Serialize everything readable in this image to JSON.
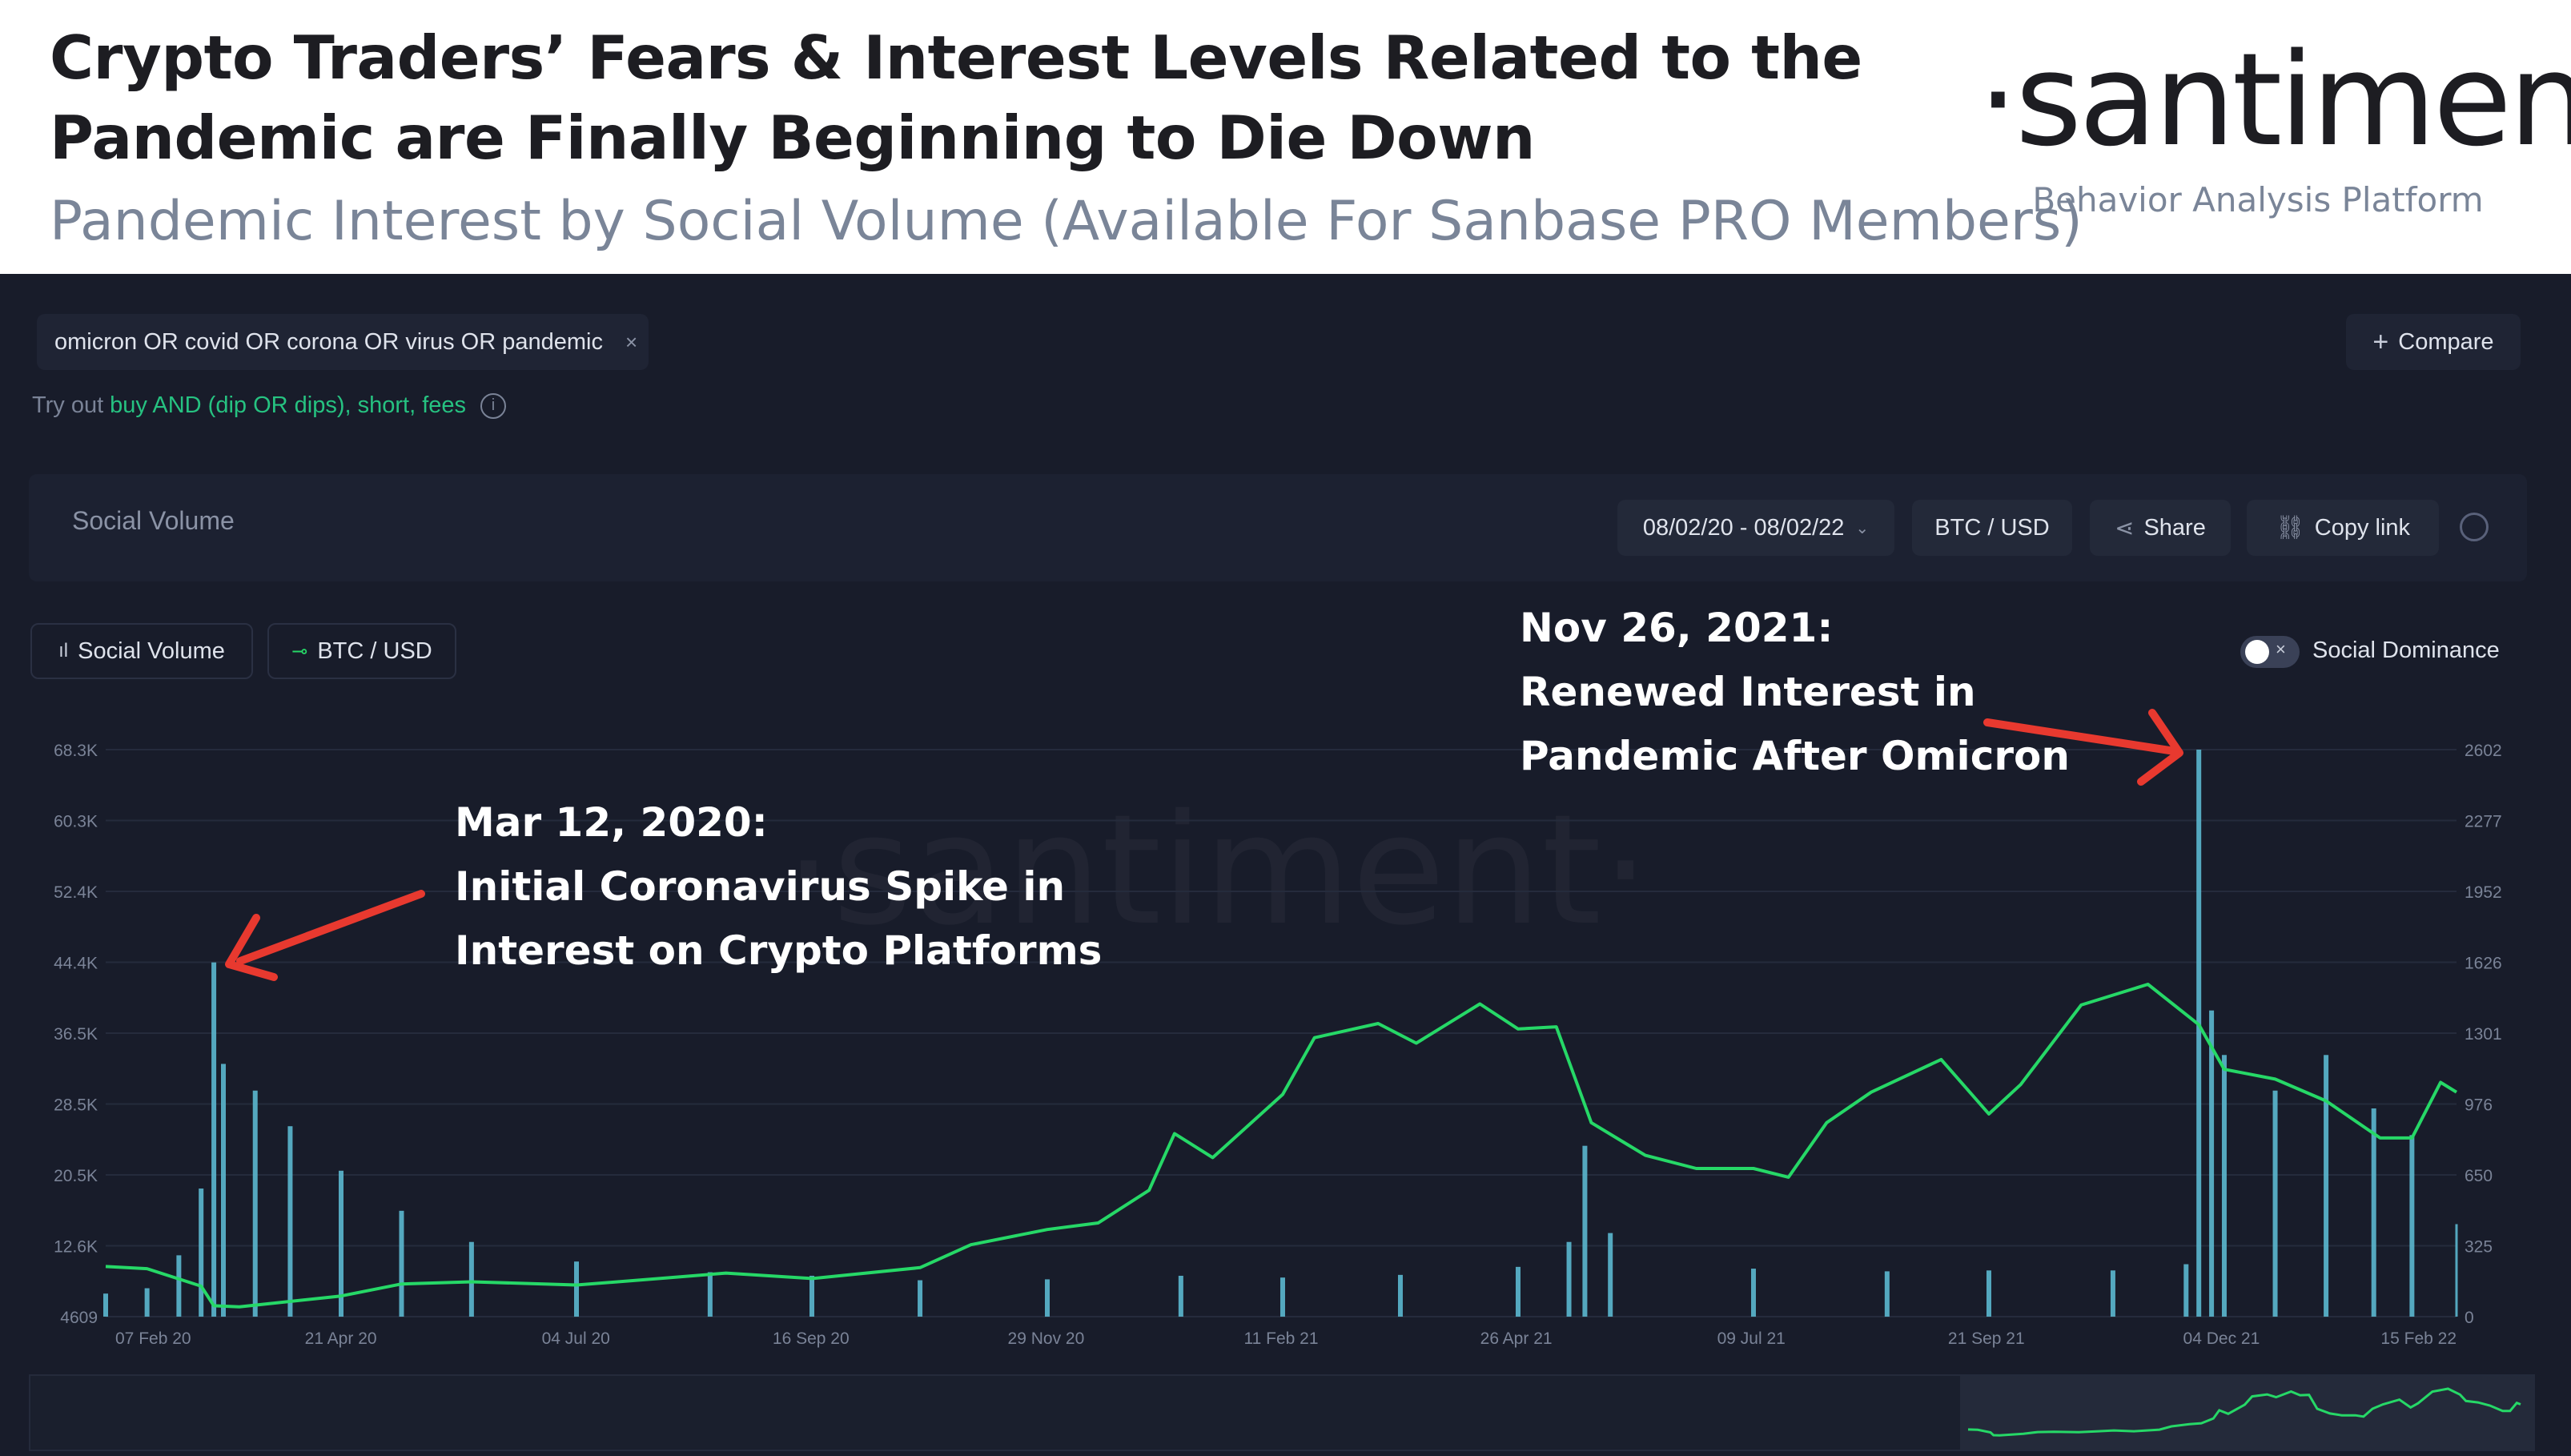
{
  "header": {
    "title": "Crypto Traders’ Fears & Interest Levels Related to the Pandemic are Finally Beginning to Die Down",
    "subtitle": "Pandemic Interest by Social Volume (Available For Sanbase PRO Members)",
    "brand": "·santiment·",
    "tagline": "Behavior Analysis Platform"
  },
  "search": {
    "query": "omicron OR covid OR corona OR virus OR pandemic",
    "close_icon": "×",
    "compare_label": "Compare",
    "try_prefix": "Try out",
    "suggestions": "buy AND (dip OR dips), short, fees"
  },
  "toolbar": {
    "title": "Social Volume",
    "date_range": "08/02/20 - 08/02/22",
    "pair": "BTC / USD",
    "share": "Share",
    "copy_link": "Copy link"
  },
  "legend": {
    "social_volume": "Social Volume",
    "btc": "BTC / USD",
    "social_dominance": "Social Dominance"
  },
  "colors": {
    "social_volume": "#5bb8cf",
    "btc": "#26d867",
    "annotation_arrow": "#e8392f",
    "background": "#181c2a"
  },
  "annotations": [
    {
      "lines": [
        "Mar 12, 2020:",
        "Initial Coronavirus Spike in",
        "Interest on Crypto Platforms"
      ]
    },
    {
      "lines": [
        "Nov 26, 2021:",
        "Renewed Interest in",
        "Pandemic After Omicron"
      ]
    }
  ],
  "watermark": "·santiment·",
  "chart_data": {
    "type": "bar",
    "x_range": [
      "2020-02-07",
      "2022-02-15"
    ],
    "x_ticks": [
      "07 Feb 20",
      "21 Apr 20",
      "04 Jul 20",
      "16 Sep 20",
      "29 Nov 20",
      "11 Feb 21",
      "26 Apr 21",
      "09 Jul 21",
      "21 Sep 21",
      "04 Dec 21",
      "15 Feb 22"
    ],
    "y_left_ticks": [
      "68.3K",
      "60.3K",
      "52.4K",
      "44.4K",
      "36.5K",
      "28.5K",
      "20.5K",
      "12.6K",
      "4609"
    ],
    "y_left_range": [
      4609,
      68300
    ],
    "y_right_ticks": [
      "2602",
      "2277",
      "1952",
      "1626",
      "1301",
      "976",
      "650",
      "325",
      "0"
    ],
    "y_right_range": [
      0,
      2602
    ],
    "series": [
      {
        "name": "Social Volume",
        "type": "bar",
        "axis": "left",
        "points": [
          [
            "2020-02-07",
            7200
          ],
          [
            "2020-02-20",
            7800
          ],
          [
            "2020-03-01",
            11500
          ],
          [
            "2020-03-08",
            19000
          ],
          [
            "2020-03-12",
            44400
          ],
          [
            "2020-03-15",
            33000
          ],
          [
            "2020-03-25",
            30000
          ],
          [
            "2020-04-05",
            26000
          ],
          [
            "2020-04-21",
            21000
          ],
          [
            "2020-05-10",
            16500
          ],
          [
            "2020-06-01",
            13000
          ],
          [
            "2020-07-04",
            10800
          ],
          [
            "2020-08-15",
            9600
          ],
          [
            "2020-09-16",
            9200
          ],
          [
            "2020-10-20",
            8700
          ],
          [
            "2020-11-29",
            8800
          ],
          [
            "2021-01-10",
            9200
          ],
          [
            "2021-02-11",
            9000
          ],
          [
            "2021-03-20",
            9300
          ],
          [
            "2021-04-26",
            10200
          ],
          [
            "2021-05-12",
            13000
          ],
          [
            "2021-05-17",
            23800
          ],
          [
            "2021-05-25",
            14000
          ],
          [
            "2021-07-09",
            10000
          ],
          [
            "2021-08-20",
            9700
          ],
          [
            "2021-09-21",
            9800
          ],
          [
            "2021-10-30",
            9800
          ],
          [
            "2021-11-22",
            10500
          ],
          [
            "2021-11-26",
            68300
          ],
          [
            "2021-11-30",
            39000
          ],
          [
            "2021-12-04",
            34000
          ],
          [
            "2021-12-20",
            30000
          ],
          [
            "2022-01-05",
            34000
          ],
          [
            "2022-01-20",
            28000
          ],
          [
            "2022-02-01",
            25000
          ],
          [
            "2022-02-15",
            15000
          ]
        ]
      },
      {
        "name": "BTC / USD",
        "type": "line",
        "axis": "right",
        "points": [
          [
            "2020-02-07",
            230
          ],
          [
            "2020-02-20",
            220
          ],
          [
            "2020-03-08",
            140
          ],
          [
            "2020-03-12",
            50
          ],
          [
            "2020-03-20",
            45
          ],
          [
            "2020-04-21",
            95
          ],
          [
            "2020-05-10",
            150
          ],
          [
            "2020-06-01",
            160
          ],
          [
            "2020-07-04",
            145
          ],
          [
            "2020-07-30",
            175
          ],
          [
            "2020-08-20",
            200
          ],
          [
            "2020-09-16",
            175
          ],
          [
            "2020-10-20",
            225
          ],
          [
            "2020-11-05",
            330
          ],
          [
            "2020-11-29",
            400
          ],
          [
            "2020-12-15",
            430
          ],
          [
            "2020-12-31",
            580
          ],
          [
            "2021-01-08",
            840
          ],
          [
            "2021-01-20",
            730
          ],
          [
            "2021-02-11",
            1020
          ],
          [
            "2021-02-21",
            1280
          ],
          [
            "2021-03-13",
            1345
          ],
          [
            "2021-03-25",
            1255
          ],
          [
            "2021-04-14",
            1435
          ],
          [
            "2021-04-26",
            1320
          ],
          [
            "2021-05-08",
            1330
          ],
          [
            "2021-05-19",
            890
          ],
          [
            "2021-06-05",
            740
          ],
          [
            "2021-06-21",
            680
          ],
          [
            "2021-07-09",
            680
          ],
          [
            "2021-07-20",
            640
          ],
          [
            "2021-08-01",
            890
          ],
          [
            "2021-08-15",
            1030
          ],
          [
            "2021-09-06",
            1180
          ],
          [
            "2021-09-21",
            930
          ],
          [
            "2021-10-01",
            1065
          ],
          [
            "2021-10-20",
            1430
          ],
          [
            "2021-11-10",
            1525
          ],
          [
            "2021-11-26",
            1340
          ],
          [
            "2021-12-04",
            1135
          ],
          [
            "2021-12-20",
            1090
          ],
          [
            "2022-01-05",
            990
          ],
          [
            "2022-01-22",
            820
          ],
          [
            "2022-02-01",
            820
          ],
          [
            "2022-02-10",
            1075
          ],
          [
            "2022-02-15",
            1030
          ]
        ]
      }
    ]
  }
}
